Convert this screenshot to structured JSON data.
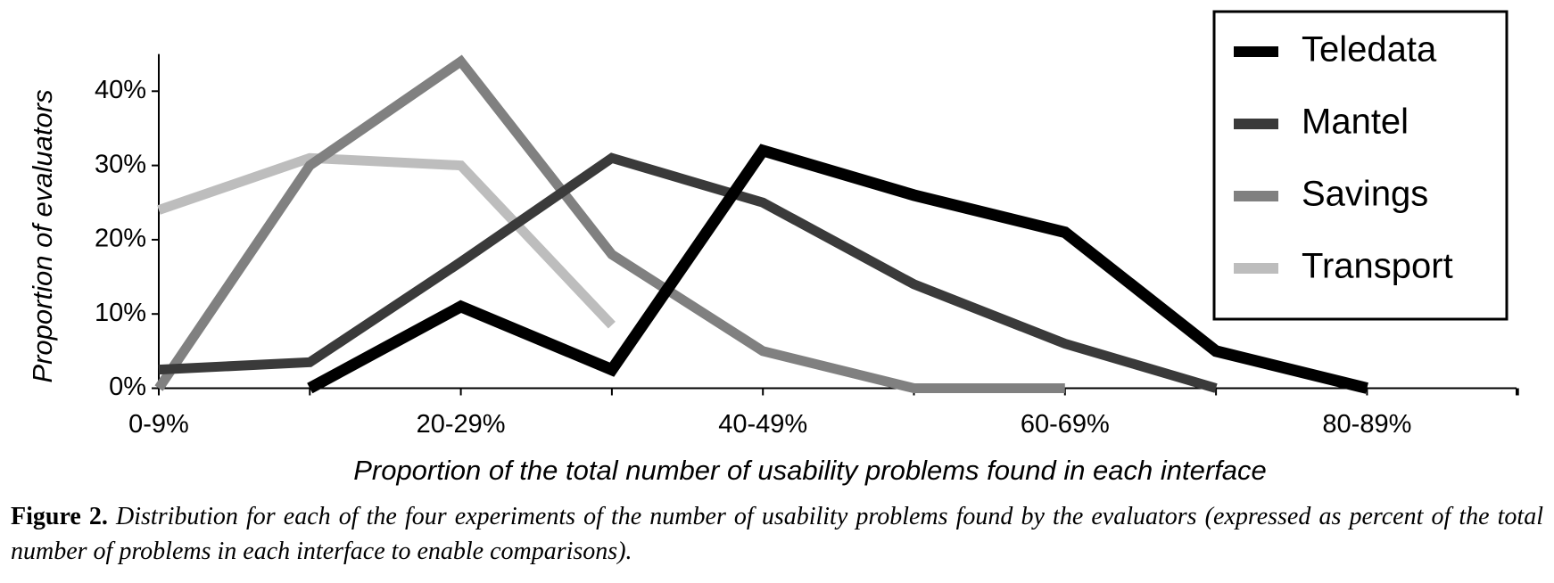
{
  "chart_data": {
    "type": "line",
    "categories": [
      "0-9%",
      null,
      "20-29%",
      null,
      "40-49%",
      null,
      "60-69%",
      null,
      "80-89%",
      null
    ],
    "xlabel": "Proportion of the total number of usability problems found  in each interface",
    "ylabel": "Proportion of evaluators",
    "ylim": [
      0,
      45
    ],
    "yticks": [
      {
        "value": 0,
        "label": "0%"
      },
      {
        "value": 10,
        "label": "10%"
      },
      {
        "value": 20,
        "label": "20%"
      },
      {
        "value": 30,
        "label": "30%"
      },
      {
        "value": 40,
        "label": "40%"
      }
    ],
    "legend": "upper right",
    "series": [
      {
        "name": "Teledata",
        "color": "#000000",
        "values": [
          null,
          0,
          11,
          2.5,
          32,
          26,
          21,
          5,
          0,
          null
        ]
      },
      {
        "name": "Mantel",
        "color": "#3a3a3a",
        "values": [
          2.5,
          3.5,
          17,
          31,
          25,
          14,
          6,
          0,
          null,
          null
        ]
      },
      {
        "name": "Savings",
        "color": "#808080",
        "values": [
          0,
          30,
          44,
          18,
          5,
          0,
          0,
          null,
          null,
          null
        ]
      },
      {
        "name": "Transport",
        "color": "#bdbdbd",
        "values": [
          24,
          31,
          30,
          8.5,
          null,
          null,
          null,
          null,
          null,
          null
        ]
      }
    ]
  },
  "figure": {
    "label": "Figure 2.",
    "caption": "Distribution for each of the four experiments of the number of usability problems found by the evaluators (expressed as percent of the total number of problems in each interface to enable comparisons)."
  }
}
